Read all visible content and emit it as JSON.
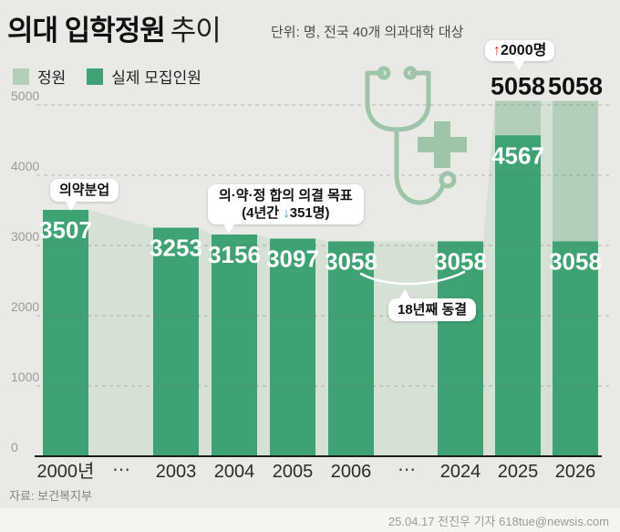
{
  "header": {
    "title": "의대 입학정원",
    "title_suffix": "추이",
    "subtitle": "단위: 명, 전국 40개 의과대학 대상"
  },
  "legend": {
    "quota_label": "정원",
    "actual_label": "실제 모집인원"
  },
  "colors": {
    "background": "#e9e9e6",
    "actual_bar": "#3ea273",
    "quota_bar": "#b3cfba",
    "quota_area": "#d6e1d6",
    "grid": "#6f6f6d",
    "axis": "#1c1c1c",
    "bar_value_text": "#ffffff",
    "top_value_text": "#111111",
    "up_arrow_red": "#d7261d",
    "down_arrow_blue": "#3f8fd2",
    "stethoscope": "#9ec5a8"
  },
  "chart_data": {
    "type": "bar",
    "title": "의대 입학정원 추이",
    "unit_note": "단위: 명, 전국 40개 의과대학 대상",
    "categories": [
      "2000년",
      "2003",
      "2004",
      "2005",
      "2006",
      "2024",
      "2025",
      "2026"
    ],
    "gap_label": "⋯",
    "gaps_after_index": [
      0,
      4
    ],
    "series": [
      {
        "name": "정원",
        "values": [
          3507,
          3253,
          3156,
          3097,
          3058,
          3058,
          5058,
          5058
        ]
      },
      {
        "name": "실제 모집인원",
        "values": [
          3507,
          3253,
          3156,
          3097,
          3058,
          3058,
          4567,
          3058
        ]
      }
    ],
    "yticks": [
      0,
      1000,
      2000,
      3000,
      4000,
      5000
    ],
    "ylim": [
      0,
      5300
    ],
    "grid": "dashed-horizontal",
    "legend_position": "top-left",
    "notes": "정원(light) drawn as connected area behind 실제 모집인원(dark) bars; 2025/2026 quota 5058 exceeds actual"
  },
  "annotations": {
    "pharmacy_reform": {
      "text": "의약분업"
    },
    "agreement": {
      "line1": "의·약·정 합의 의결 목표",
      "line2_prefix": "(4년간 ",
      "line2_arrow": "↓",
      "line2_suffix": "351명)"
    },
    "freeze": {
      "text": "18년째 동결"
    },
    "increase": {
      "arrow": "↑",
      "text": "2000명"
    }
  },
  "footer": {
    "source": "자료: 보건복지부",
    "credit": "25.04.17 전진우 기자 618tue@newsis.com"
  }
}
